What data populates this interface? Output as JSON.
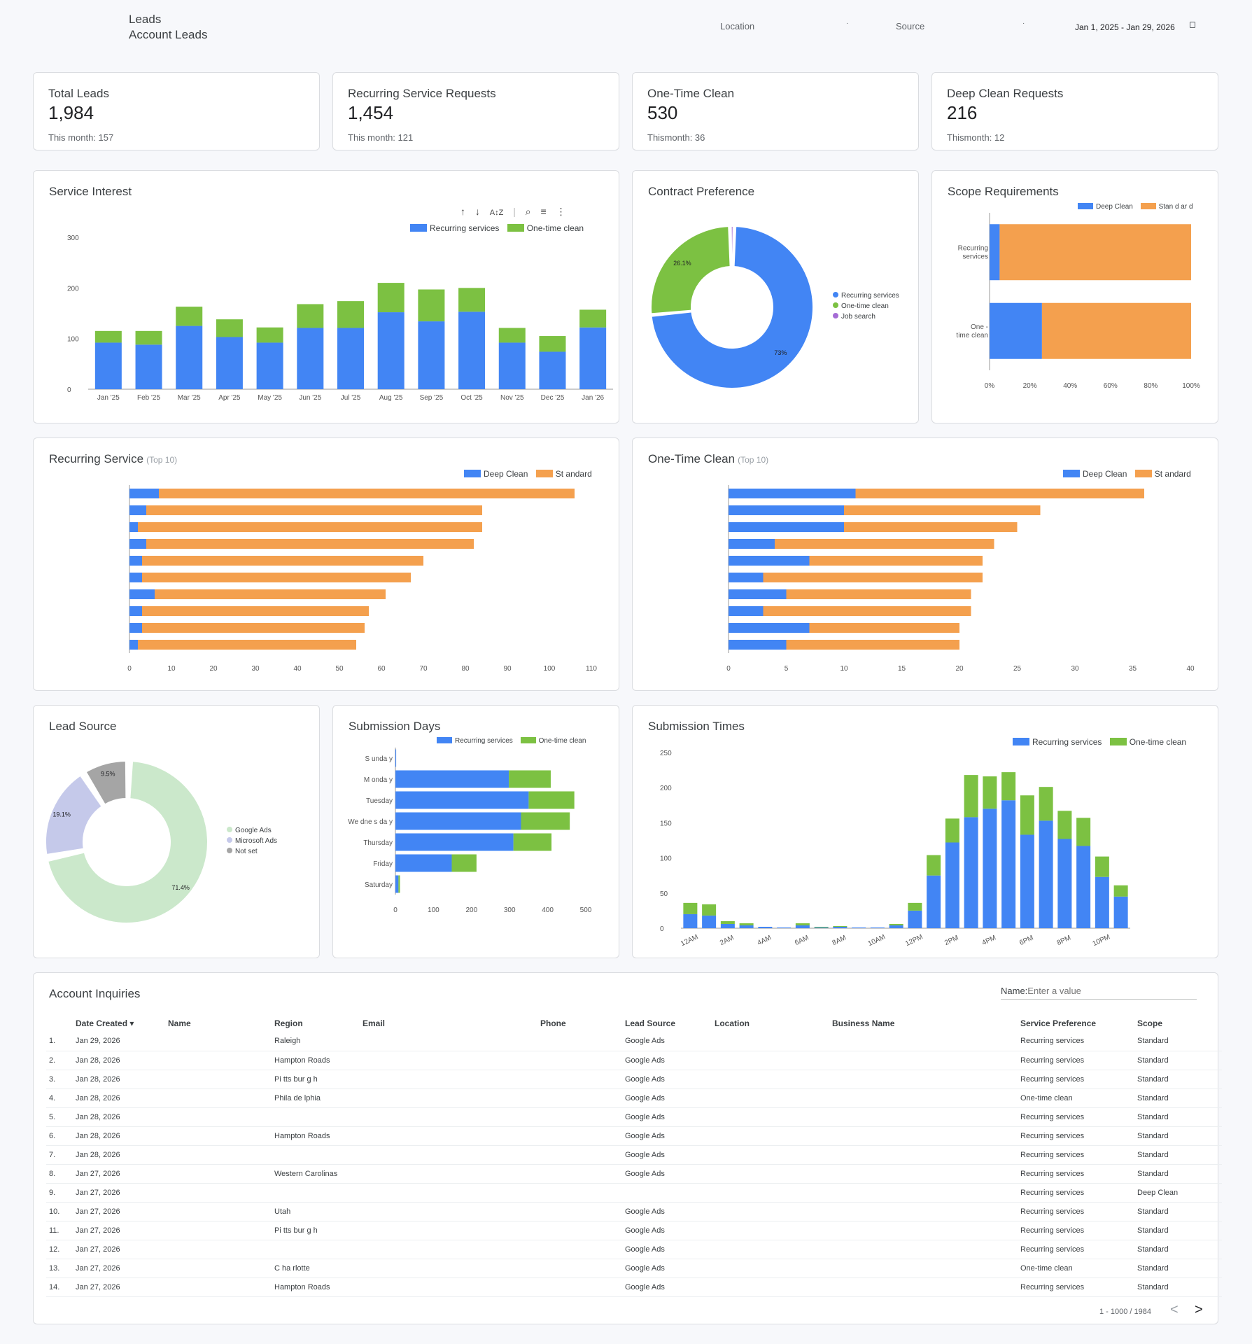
{
  "header": {
    "title": "Leads",
    "subtitle": "Account Leads",
    "location_label": "Location",
    "source_label": "Source",
    "date_range": "Jan 1, 2025 - Jan 29, 2026"
  },
  "kpis": [
    {
      "label": "Total Leads",
      "value": "1,984",
      "sub": "This month: 157"
    },
    {
      "label": "Recurring Service Requests",
      "value": "1,454",
      "sub": "This month: 121"
    },
    {
      "label": "One-Time Clean",
      "value": "530",
      "sub": "Thismonth: 36"
    },
    {
      "label": "Deep Clean Requests",
      "value": "216",
      "sub": "Thismonth: 12"
    }
  ],
  "colors": {
    "blue": "#4285f4",
    "green": "#7cc142",
    "orange": "#f4a04e",
    "purple": "#a56cd5",
    "lightgreen": "#cbe8cb",
    "lavender": "#c5c9ea",
    "gray": "#a5a5a5"
  },
  "service_interest": {
    "title": "Service Interest",
    "toolbar": [
      "↑",
      "↓",
      "A↕Z",
      "⌕",
      "≡",
      "⋮"
    ]
  },
  "contract": {
    "title": "Contract Preference"
  },
  "scope": {
    "title": "Scope Requirements"
  },
  "recurring": {
    "title": "Recurring Service",
    "suffix": "(Top 10)"
  },
  "onetime": {
    "title": "One-Time Clean",
    "suffix": "(Top 10)"
  },
  "leadsource": {
    "title": "Lead Source"
  },
  "subdays": {
    "title": "Submission Days"
  },
  "subtimes": {
    "title": "Submission Times"
  },
  "chart_data": [
    {
      "id": "service_interest",
      "type": "bar",
      "stacked": true,
      "categories": [
        "Jan '25",
        "Feb '25",
        "Mar '25",
        "Apr '25",
        "May '25",
        "Jun '25",
        "Jul '25",
        "Aug '25",
        "Sep '25",
        "Oct '25",
        "Nov '25",
        "Dec '25",
        "Jan '26"
      ],
      "series": [
        {
          "name": "Recurring services",
          "values": [
            92,
            88,
            125,
            103,
            92,
            121,
            121,
            152,
            134,
            153,
            92,
            74,
            122
          ]
        },
        {
          "name": "One-time clean",
          "values": [
            23,
            27,
            38,
            35,
            30,
            47,
            53,
            58,
            63,
            47,
            29,
            31,
            35
          ]
        }
      ],
      "yticks": [
        0,
        100,
        200,
        300
      ],
      "ylim": [
        0,
        300
      ],
      "legend": "top-right"
    },
    {
      "id": "contract",
      "type": "pie",
      "donut": true,
      "labels": [
        "Recurring services",
        "One-time clean",
        "Job search"
      ],
      "values": [
        73,
        26.1,
        0.9
      ],
      "data_labels": [
        "73%",
        "26.1%",
        ""
      ],
      "legend": "right"
    },
    {
      "id": "scope",
      "type": "bar",
      "orientation": "horizontal",
      "stacked": true,
      "percent": true,
      "categories": [
        "Recurring services",
        "One - time clean"
      ],
      "series": [
        {
          "name": "Deep Clean",
          "values": [
            5,
            26
          ]
        },
        {
          "name": "Stan d ar d",
          "values": [
            95,
            74
          ]
        }
      ],
      "xticks": [
        "0%",
        "20%",
        "40%",
        "60%",
        "80%",
        "100%"
      ],
      "legend": "top-right"
    },
    {
      "id": "recurring",
      "type": "bar",
      "orientation": "horizontal",
      "stacked": true,
      "categories": [
        "",
        "",
        "",
        "",
        "",
        "",
        "",
        "",
        "",
        ""
      ],
      "series": [
        {
          "name": "Deep Clean",
          "values": [
            7,
            4,
            2,
            4,
            3,
            3,
            6,
            3,
            3,
            2
          ]
        },
        {
          "name": "St andard",
          "values": [
            99,
            80,
            82,
            78,
            67,
            64,
            55,
            54,
            53,
            52
          ]
        }
      ],
      "xticks": [
        0,
        10,
        20,
        30,
        40,
        50,
        60,
        70,
        80,
        90,
        100,
        110
      ],
      "xlim": [
        0,
        110
      ],
      "legend": "top-right"
    },
    {
      "id": "onetime",
      "type": "bar",
      "orientation": "horizontal",
      "stacked": true,
      "categories": [
        "",
        "",
        "",
        "",
        "",
        "",
        "",
        "",
        "",
        ""
      ],
      "series": [
        {
          "name": "Deep Clean",
          "values": [
            11,
            10,
            10,
            4,
            7,
            3,
            5,
            3,
            7,
            5
          ]
        },
        {
          "name": "St andard",
          "values": [
            25,
            17,
            15,
            19,
            15,
            19,
            16,
            18,
            13,
            15
          ]
        }
      ],
      "xticks": [
        0,
        5,
        10,
        15,
        20,
        25,
        30,
        35,
        40
      ],
      "xlim": [
        0,
        40
      ],
      "legend": "top-right"
    },
    {
      "id": "leadsource",
      "type": "pie",
      "donut": true,
      "labels": [
        "Google Ads",
        "Microsoft Ads",
        "Not set"
      ],
      "values": [
        71.4,
        19.1,
        9.5
      ],
      "data_labels": [
        "71.4%",
        "19.1%",
        "9.5%"
      ],
      "legend": "right"
    },
    {
      "id": "subdays",
      "type": "bar",
      "orientation": "horizontal",
      "stacked": true,
      "categories": [
        "S unda y",
        "M onda y",
        "Tuesday",
        "We dne s da y",
        "Thursday",
        "Friday",
        "Saturday"
      ],
      "series": [
        {
          "name": "Recurring services",
          "values": [
            2,
            298,
            350,
            330,
            310,
            148,
            8
          ]
        },
        {
          "name": "One-time clean",
          "values": [
            0,
            110,
            120,
            128,
            100,
            65,
            4
          ]
        }
      ],
      "xticks": [
        0,
        100,
        200,
        300,
        400,
        500
      ],
      "xlim": [
        0,
        500
      ],
      "legend": "top"
    },
    {
      "id": "subtimes",
      "type": "bar",
      "stacked": true,
      "categories": [
        "12AM",
        "1AM",
        "2AM",
        "3AM",
        "4AM",
        "5AM",
        "6AM",
        "7AM",
        "8AM",
        "9AM",
        "10AM",
        "11AM",
        "12PM",
        "1PM",
        "2PM",
        "3PM",
        "4PM",
        "5PM",
        "6PM",
        "7PM",
        "8PM",
        "9PM",
        "10PM",
        "11PM"
      ],
      "xlabels": [
        "12AM",
        "2AM",
        "4AM",
        "6AM",
        "8AM",
        "10AM",
        "12PM",
        "2PM",
        "4PM",
        "6PM",
        "8PM",
        "10PM"
      ],
      "series": [
        {
          "name": "Recurring services",
          "values": [
            20,
            18,
            6,
            4,
            2,
            1,
            4,
            1,
            2,
            1,
            1,
            4,
            25,
            75,
            122,
            158,
            170,
            182,
            133,
            153,
            127,
            117,
            73,
            45
          ]
        },
        {
          "name": "One-time clean",
          "values": [
            16,
            16,
            4,
            3,
            0,
            0,
            3,
            1,
            1,
            0,
            0,
            2,
            11,
            29,
            34,
            60,
            46,
            40,
            56,
            48,
            40,
            40,
            29,
            16
          ]
        }
      ],
      "yticks": [
        0,
        50,
        100,
        150,
        200,
        250
      ],
      "ylim": [
        0,
        250
      ],
      "legend": "top-right"
    }
  ],
  "table": {
    "title": "Account Inquiries",
    "search_label": "Name:",
    "search_placeholder": "Enter a value",
    "columns": [
      "",
      "Date Created ▾",
      "Name",
      "Region",
      "Email",
      "Phone",
      "Lead Source",
      "Location",
      "Business Name",
      "Service Preference",
      "Scope"
    ],
    "rows": [
      [
        "1.",
        "Jan 29, 2026",
        "",
        "Raleigh",
        "",
        "",
        "Google Ads",
        "",
        "",
        "Recurring services",
        "Standard"
      ],
      [
        "2.",
        "Jan 28, 2026",
        "",
        "Hampton Roads",
        "",
        "",
        "Google Ads",
        "",
        "",
        "Recurring services",
        "Standard"
      ],
      [
        "3.",
        "Jan 28, 2026",
        "",
        "Pi tts bur g h",
        "",
        "",
        "Google Ads",
        "",
        "",
        "Recurring services",
        "Standard"
      ],
      [
        "4.",
        "Jan 28, 2026",
        "",
        "Phila de lphia",
        "",
        "",
        "Google Ads",
        "",
        "",
        "One-time clean",
        "Standard"
      ],
      [
        "5.",
        "Jan 28, 2026",
        "",
        "",
        "",
        "",
        "Google Ads",
        "",
        "",
        "Recurring services",
        "Standard"
      ],
      [
        "6.",
        "Jan 28, 2026",
        "",
        "Hampton Roads",
        "",
        "",
        "Google Ads",
        "",
        "",
        "Recurring services",
        "Standard"
      ],
      [
        "7.",
        "Jan 28, 2026",
        "",
        "",
        "",
        "",
        "Google Ads",
        "",
        "",
        "Recurring services",
        "Standard"
      ],
      [
        "8.",
        "Jan 27, 2026",
        "",
        "Western Carolinas",
        "",
        "",
        "Google Ads",
        "",
        "",
        "Recurring services",
        "Standard"
      ],
      [
        "9.",
        "Jan 27, 2026",
        "",
        "",
        "",
        "",
        "",
        "",
        "",
        "Recurring services",
        "Deep Clean"
      ],
      [
        "10.",
        "Jan 27, 2026",
        "",
        "Utah",
        "",
        "",
        "Google Ads",
        "",
        "",
        "Recurring services",
        "Standard"
      ],
      [
        "11.",
        "Jan 27, 2026",
        "",
        "Pi tts bur g h",
        "",
        "",
        "Google Ads",
        "",
        "",
        "Recurring services",
        "Standard"
      ],
      [
        "12.",
        "Jan 27, 2026",
        "",
        "",
        "",
        "",
        "Google Ads",
        "",
        "",
        "Recurring services",
        "Standard"
      ],
      [
        "13.",
        "Jan 27, 2026",
        "",
        "C ha rlotte",
        "",
        "",
        "Google Ads",
        "",
        "",
        "One-time clean",
        "Standard"
      ],
      [
        "14.",
        "Jan 27, 2026",
        "",
        "Hampton Roads",
        "",
        "",
        "Google Ads",
        "",
        "",
        "Recurring services",
        "Standard"
      ]
    ],
    "pagination": "1 - 1000 / 1984",
    "prev": "<",
    "next": ">"
  }
}
